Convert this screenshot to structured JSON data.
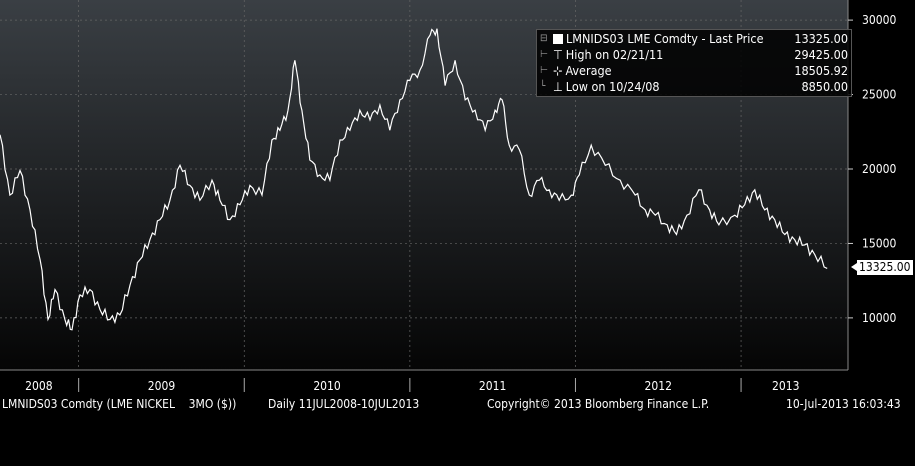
{
  "chart_data": {
    "type": "line",
    "title": "LMNIDS03 LME Comdty - Last Price",
    "xlabel": "",
    "ylabel": "",
    "ylim": [
      6500,
      31350
    ],
    "xlim": [
      2008.525,
      2013.525
    ],
    "y_ticks": [
      "10000",
      "15000",
      "20000",
      "25000",
      "30000"
    ],
    "x_ticks": [
      {
        "label": "2008",
        "center": 2008.76
      },
      {
        "label": "2009",
        "center": 2009.5
      },
      {
        "label": "2010",
        "center": 2010.5
      },
      {
        "label": "2011",
        "center": 2011.5
      },
      {
        "label": "2012",
        "center": 2012.5
      },
      {
        "label": "2013",
        "center": 2013.27
      }
    ],
    "year_boundaries": [
      2009,
      2010,
      2011,
      2012,
      2013
    ],
    "grid": true,
    "legend_placement": "top-right",
    "series": [
      {
        "name": "LMNIDS03 LME Comdty - Last Price",
        "x": [
          2008.525,
          2008.585,
          2008.646,
          2008.706,
          2008.767,
          2008.815,
          2008.857,
          2008.917,
          2008.96,
          2009.008,
          2009.068,
          2009.129,
          2009.189,
          2009.249,
          2009.31,
          2009.37,
          2009.43,
          2009.491,
          2009.551,
          2009.612,
          2009.672,
          2009.732,
          2009.805,
          2009.853,
          2009.914,
          2009.974,
          2010.034,
          2010.107,
          2010.167,
          2010.215,
          2010.264,
          2010.306,
          2010.348,
          2010.396,
          2010.457,
          2010.517,
          2010.578,
          2010.638,
          2010.698,
          2010.759,
          2010.819,
          2010.879,
          2010.94,
          2011.0,
          2011.061,
          2011.122,
          2011.164,
          2011.213,
          2011.273,
          2011.334,
          2011.394,
          2011.455,
          2011.515,
          2011.557,
          2011.6,
          2011.661,
          2011.721,
          2011.782,
          2011.842,
          2011.902,
          2011.975,
          2012.023,
          2012.095,
          2012.18,
          2012.27,
          2012.361,
          2012.421,
          2012.482,
          2012.554,
          2012.61,
          2012.673,
          2012.745,
          2012.81,
          2012.866,
          2012.962,
          2013.022,
          2013.083,
          2013.143,
          2013.203,
          2013.264,
          2013.324,
          2013.384,
          2013.445,
          2013.52
        ],
        "y": [
          22300,
          18250,
          19900,
          17250,
          13900,
          9900,
          11900,
          9900,
          9200,
          11550,
          11900,
          10550,
          9900,
          10200,
          12200,
          13900,
          15250,
          16600,
          17900,
          20250,
          18900,
          17900,
          19250,
          17900,
          16600,
          17600,
          18900,
          18250,
          21950,
          22600,
          23950,
          27300,
          23950,
          20600,
          19600,
          19250,
          21950,
          22600,
          23950,
          23300,
          24300,
          22600,
          24650,
          25950,
          26650,
          28990,
          29425,
          25600,
          27300,
          24650,
          23950,
          22600,
          23950,
          24650,
          21600,
          21300,
          18250,
          19250,
          18600,
          17900,
          18250,
          19600,
          21600,
          20250,
          19250,
          18250,
          17250,
          16900,
          16250,
          15600,
          16900,
          18600,
          17250,
          16250,
          16900,
          17600,
          18600,
          17250,
          16600,
          15600,
          15250,
          14900,
          14250,
          13325
        ]
      }
    ]
  },
  "legend": {
    "title": "LMNIDS03 LME Comdty - Last Price",
    "last": "13325.00",
    "high_label": "High on 02/21/11",
    "high": "29425.00",
    "avg_label": "Average",
    "avg": "18505.92",
    "low_label": "Low on 10/24/08",
    "low": "8850.00"
  },
  "last_price_tag": "13325.00",
  "footer": {
    "ticker": "LMNIDS03 Comdty (LME NICKEL    3MO ($))",
    "range": "Daily 11JUL2008-10JUL2013",
    "copyright": "Copyright© 2013 Bloomberg Finance L.P.",
    "timestamp": "10-Jul-2013 16:03:43"
  },
  "colors": {
    "line": "#ffffff",
    "bg_top": "#3a3f44",
    "bg_bottom": "#050505"
  }
}
